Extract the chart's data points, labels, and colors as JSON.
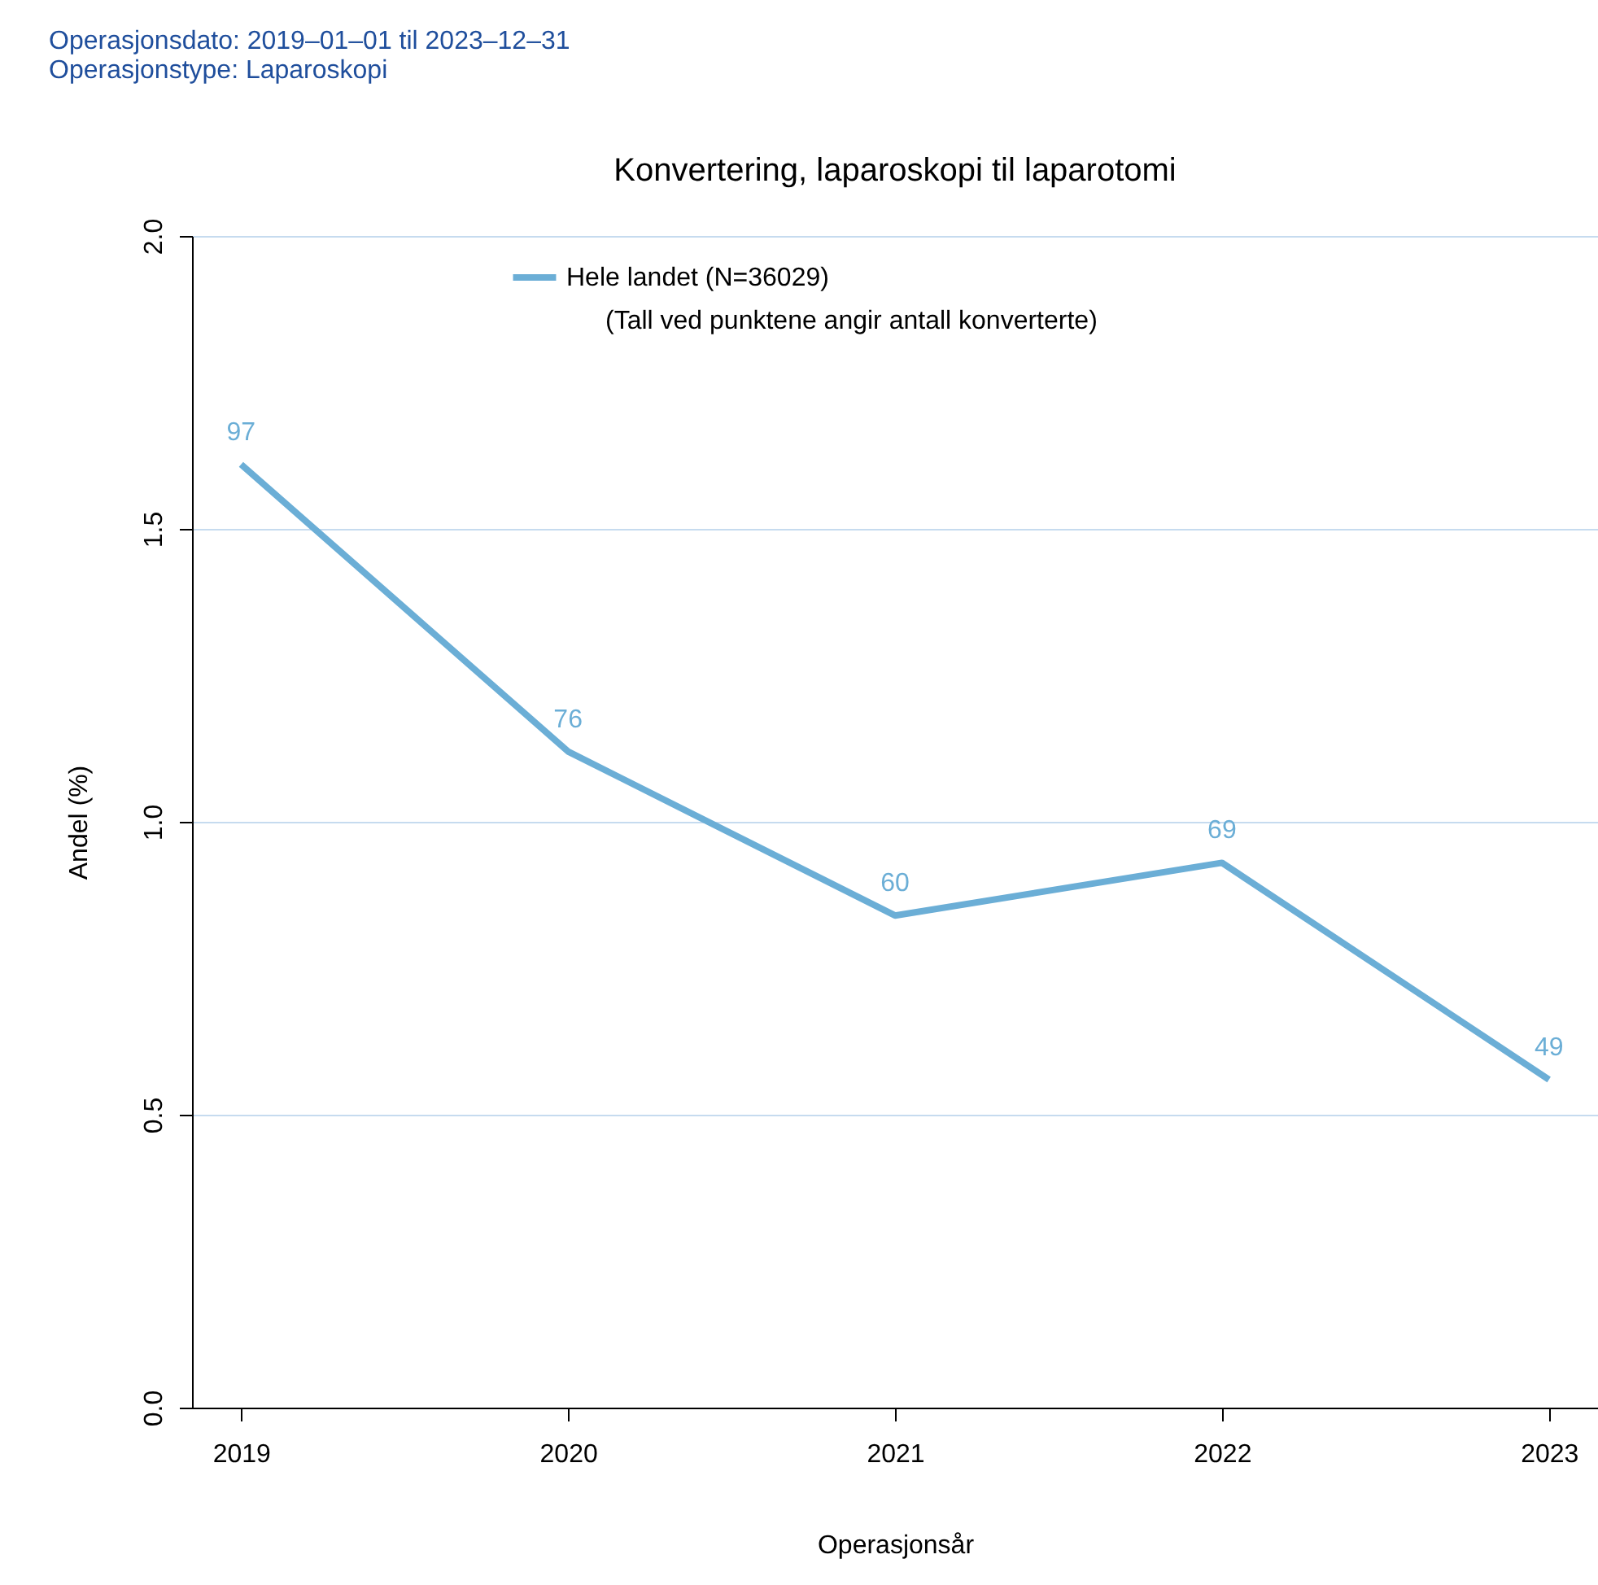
{
  "chart_data": {
    "type": "line",
    "title": "Konvertering, laparoskopi til laparotomi",
    "xlabel": "Operasjonsår",
    "ylabel": "Andel (%)",
    "annotations": [
      "Operasjonsdato: 2019‒01‒01 til 2023‒12‒31",
      "Operasjonstype: Laparoskopi",
      "(Tall ved punktene angir antall konverterte)",
      {
        "text": "97",
        "x": "2019",
        "y": 1.61
      },
      {
        "text": "76",
        "x": "2020",
        "y": 1.12
      },
      {
        "text": "60",
        "x": "2021",
        "y": 0.84
      },
      {
        "text": "69",
        "x": "2022",
        "y": 0.93
      },
      {
        "text": "49",
        "x": "2023",
        "y": 0.56
      }
    ],
    "categories": [
      "2019",
      "2020",
      "2021",
      "2022",
      "2023"
    ],
    "series": [
      {
        "name": "Hele landet (N=36029)",
        "color": "#6baed6",
        "values": [
          1.61,
          1.12,
          0.84,
          0.93,
          0.56
        ]
      }
    ],
    "ylim": [
      0,
      2
    ],
    "yticks": [
      {
        "value": 0,
        "label": "0.0"
      },
      {
        "value": 0.5,
        "label": "0.5"
      },
      {
        "value": 1,
        "label": "1.0"
      },
      {
        "value": 1.5,
        "label": "1.5"
      },
      {
        "value": 2,
        "label": "2.0"
      }
    ],
    "grid": "y",
    "legend": "top",
    "line_style": "solid"
  }
}
